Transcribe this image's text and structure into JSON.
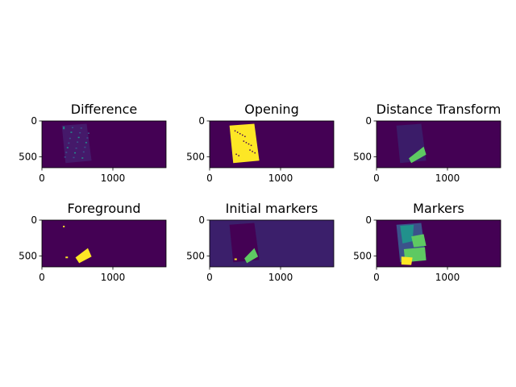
{
  "figure": {
    "background": "#ffffff"
  },
  "colors": {
    "viridis_dark": "#440154",
    "viridis_indigo": "#3b1f6b",
    "viridis_purple": "#472d7b",
    "viridis_blue": "#3b528b",
    "viridis_teal": "#21918c",
    "viridis_green": "#5ec962",
    "viridis_yellow": "#fde725"
  },
  "chart_data": [
    {
      "type": "heatmap",
      "title": "Difference",
      "x_ticks": [
        "0",
        "1000"
      ],
      "y_ticks": [
        "0",
        "500"
      ],
      "xlim": [
        0,
        1750
      ],
      "ylim": [
        650,
        0
      ],
      "background_value": 0,
      "content": "sparse low-intensity edge detail over a tilted rectangular object"
    },
    {
      "type": "heatmap",
      "title": "Opening",
      "x_ticks": [
        "0",
        "1000"
      ],
      "y_ticks": [
        "0",
        "500"
      ],
      "xlim": [
        0,
        1750
      ],
      "ylim": [
        650,
        0
      ],
      "background_value": 0,
      "content": "tilted rectangular object filled with maximum value"
    },
    {
      "type": "heatmap",
      "title": "Distance Transform",
      "x_ticks": [
        "0",
        "1000"
      ],
      "y_ticks": [
        "0",
        "500"
      ],
      "xlim": [
        0,
        1750
      ],
      "ylim": [
        650,
        0
      ],
      "background_value": 0,
      "content": "faint texture inside object with bright green band near bottom"
    },
    {
      "type": "heatmap",
      "title": "Foreground",
      "x_ticks": [
        "0",
        "1000"
      ],
      "y_ticks": [
        "0",
        "500"
      ],
      "xlim": [
        0,
        1750
      ],
      "ylim": [
        650,
        0
      ],
      "background_value": 0,
      "content": "small yellow blobs near bottom of object"
    },
    {
      "type": "heatmap",
      "title": "Initial markers",
      "x_ticks": [
        "0",
        "1000"
      ],
      "y_ticks": [
        "0",
        "500"
      ],
      "xlim": [
        0,
        1750
      ],
      "ylim": [
        650,
        0
      ],
      "background_value": 1,
      "content": "indigo background, darker object region, green marker blobs near bottom"
    },
    {
      "type": "heatmap",
      "title": "Markers",
      "x_ticks": [
        "0",
        "1000"
      ],
      "y_ticks": [
        "0",
        "500"
      ],
      "xlim": [
        0,
        1750
      ],
      "ylim": [
        650,
        0
      ],
      "background_value": 0,
      "content": "object segmented into teal, blue, green and yellow regions"
    }
  ]
}
